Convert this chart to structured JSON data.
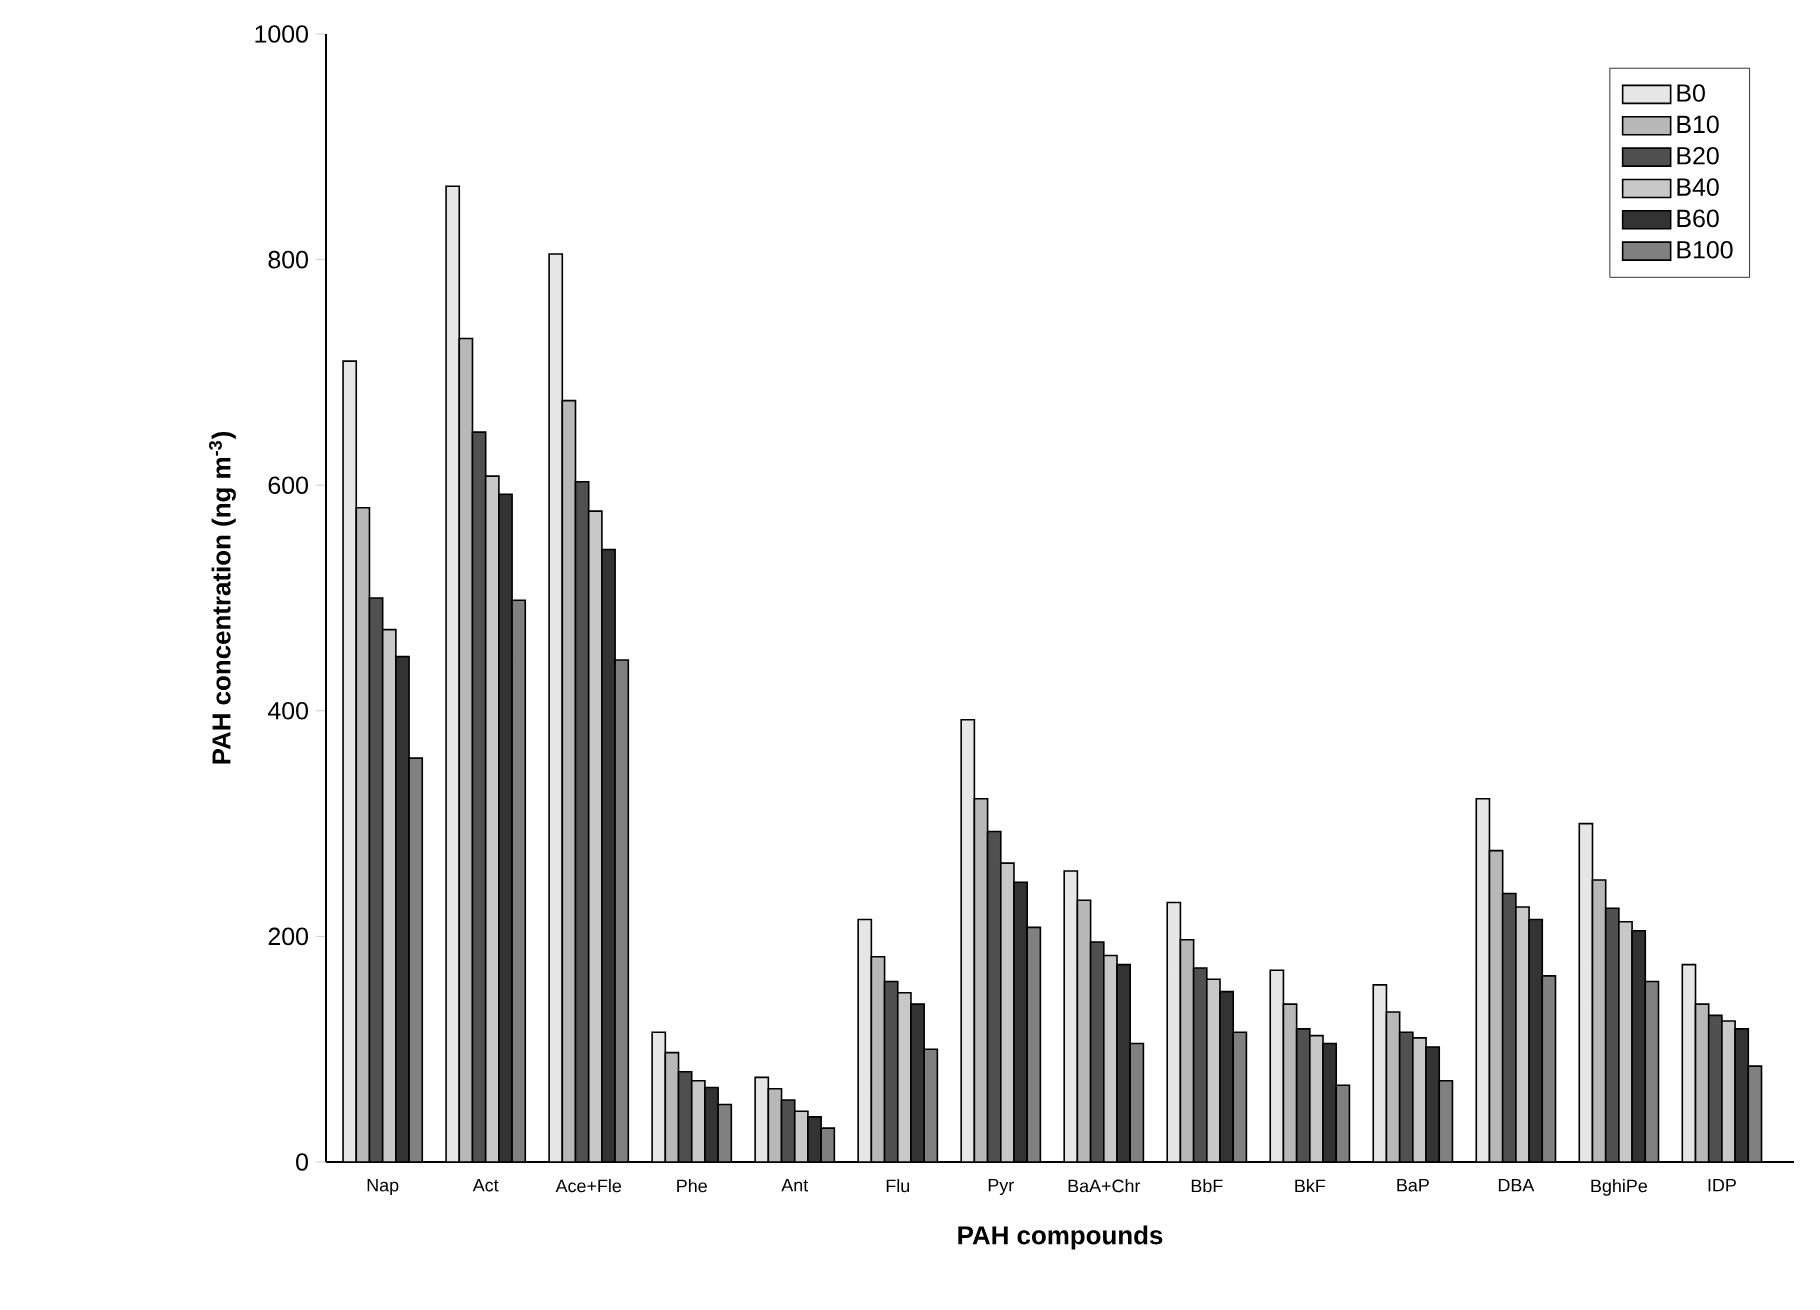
{
  "chart_data": {
    "type": "bar",
    "xlabel": "PAH compounds",
    "ylabel": "PAH concentration (ng m$^{-3}$)",
    "categories": [
      "Nap",
      "Act",
      "Ace+Fle",
      "Phe",
      "Ant",
      "Flu",
      "Pyr",
      "BaA+Chr",
      "BbF",
      "BkF",
      "BaP",
      "DBA",
      "BghiPe",
      "IDP"
    ],
    "series": [
      {
        "name": "B0",
        "color": "#e6e6e6",
        "values": [
          710,
          865,
          805,
          115,
          75,
          215,
          392,
          258,
          230,
          170,
          157,
          322,
          300,
          175
        ]
      },
      {
        "name": "B10",
        "color": "#b8b8b8",
        "values": [
          580,
          730,
          675,
          97,
          65,
          182,
          322,
          232,
          197,
          140,
          133,
          276,
          250,
          140
        ]
      },
      {
        "name": "B20",
        "color": "#505050",
        "values": [
          500,
          647,
          603,
          80,
          55,
          160,
          293,
          195,
          172,
          118,
          115,
          238,
          225,
          130
        ]
      },
      {
        "name": "B40",
        "color": "#c8c8c8",
        "values": [
          472,
          608,
          577,
          72,
          45,
          150,
          265,
          183,
          162,
          112,
          110,
          226,
          213,
          125
        ]
      },
      {
        "name": "B60",
        "color": "#333333",
        "values": [
          448,
          592,
          543,
          66,
          40,
          140,
          248,
          175,
          151,
          105,
          102,
          215,
          205,
          118
        ]
      },
      {
        "name": "B100",
        "color": "#808080",
        "values": [
          358,
          498,
          445,
          51,
          30,
          100,
          208,
          105,
          115,
          68,
          72,
          165,
          160,
          85
        ]
      }
    ],
    "ylim": [
      0,
      1000
    ],
    "yticks": [
      0,
      200,
      400,
      600,
      800,
      1000
    ],
    "legend": "top right"
  }
}
